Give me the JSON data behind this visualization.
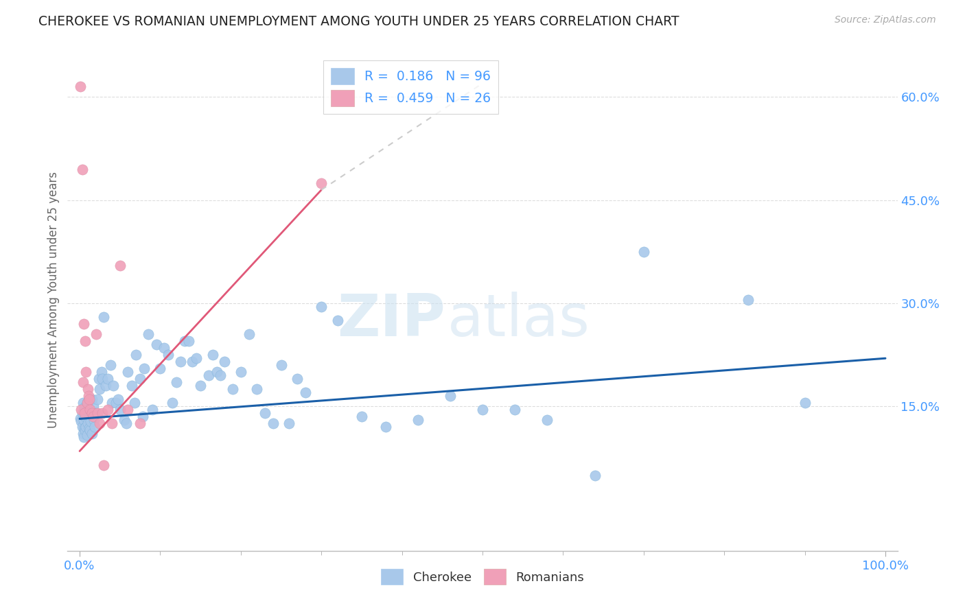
{
  "title": "CHEROKEE VS ROMANIAN UNEMPLOYMENT AMONG YOUTH UNDER 25 YEARS CORRELATION CHART",
  "source": "Source: ZipAtlas.com",
  "ylabel": "Unemployment Among Youth under 25 years",
  "cherokee_R": "0.186",
  "cherokee_N": "96",
  "romanian_R": "0.459",
  "romanian_N": "26",
  "cherokee_color": "#a8c8ea",
  "romanian_color": "#f0a0b8",
  "cherokee_line_color": "#1a5fa8",
  "romanian_line_color": "#e05878",
  "axis_label_color": "#4499ff",
  "text_color": "#333333",
  "grid_color": "#dddddd",
  "ytick_vals": [
    0.15,
    0.3,
    0.45,
    0.6
  ],
  "ytick_labels": [
    "15.0%",
    "30.0%",
    "45.0%",
    "60.0%"
  ],
  "xlim": [
    -0.015,
    1.015
  ],
  "ylim": [
    -0.06,
    0.67
  ],
  "cherokee_x": [
    0.001,
    0.002,
    0.003,
    0.003,
    0.004,
    0.004,
    0.005,
    0.005,
    0.006,
    0.006,
    0.007,
    0.007,
    0.008,
    0.008,
    0.009,
    0.009,
    0.01,
    0.01,
    0.011,
    0.012,
    0.012,
    0.013,
    0.013,
    0.014,
    0.015,
    0.015,
    0.016,
    0.017,
    0.018,
    0.019,
    0.02,
    0.022,
    0.024,
    0.025,
    0.027,
    0.028,
    0.03,
    0.032,
    0.035,
    0.038,
    0.04,
    0.042,
    0.045,
    0.048,
    0.05,
    0.055,
    0.058,
    0.06,
    0.065,
    0.068,
    0.07,
    0.075,
    0.078,
    0.08,
    0.085,
    0.09,
    0.095,
    0.1,
    0.105,
    0.11,
    0.115,
    0.12,
    0.125,
    0.13,
    0.135,
    0.14,
    0.145,
    0.15,
    0.16,
    0.165,
    0.17,
    0.175,
    0.18,
    0.19,
    0.2,
    0.21,
    0.22,
    0.23,
    0.24,
    0.25,
    0.26,
    0.27,
    0.28,
    0.3,
    0.32,
    0.35,
    0.38,
    0.42,
    0.46,
    0.5,
    0.54,
    0.58,
    0.64,
    0.7,
    0.83,
    0.9
  ],
  "cherokee_y": [
    0.132,
    0.128,
    0.14,
    0.12,
    0.155,
    0.11,
    0.13,
    0.105,
    0.148,
    0.118,
    0.135,
    0.115,
    0.14,
    0.12,
    0.155,
    0.108,
    0.145,
    0.125,
    0.138,
    0.118,
    0.142,
    0.115,
    0.145,
    0.128,
    0.16,
    0.11,
    0.14,
    0.15,
    0.13,
    0.12,
    0.14,
    0.16,
    0.19,
    0.175,
    0.2,
    0.19,
    0.28,
    0.18,
    0.19,
    0.21,
    0.155,
    0.18,
    0.155,
    0.16,
    0.145,
    0.13,
    0.125,
    0.2,
    0.18,
    0.155,
    0.225,
    0.19,
    0.135,
    0.205,
    0.255,
    0.145,
    0.24,
    0.205,
    0.235,
    0.225,
    0.155,
    0.185,
    0.215,
    0.245,
    0.245,
    0.215,
    0.22,
    0.18,
    0.195,
    0.225,
    0.2,
    0.195,
    0.215,
    0.175,
    0.2,
    0.255,
    0.175,
    0.14,
    0.125,
    0.21,
    0.125,
    0.19,
    0.17,
    0.295,
    0.275,
    0.135,
    0.12,
    0.13,
    0.165,
    0.145,
    0.145,
    0.13,
    0.05,
    0.375,
    0.305,
    0.155
  ],
  "romanian_x": [
    0.001,
    0.002,
    0.003,
    0.004,
    0.005,
    0.006,
    0.007,
    0.008,
    0.009,
    0.01,
    0.011,
    0.012,
    0.013,
    0.015,
    0.017,
    0.02,
    0.022,
    0.025,
    0.028,
    0.03,
    0.035,
    0.04,
    0.05,
    0.06,
    0.075,
    0.3
  ],
  "romanian_y": [
    0.615,
    0.145,
    0.495,
    0.185,
    0.27,
    0.14,
    0.245,
    0.2,
    0.155,
    0.175,
    0.165,
    0.16,
    0.145,
    0.14,
    0.135,
    0.255,
    0.14,
    0.125,
    0.14,
    0.065,
    0.145,
    0.125,
    0.355,
    0.145,
    0.125,
    0.475
  ],
  "cherokee_trend": [
    0.0,
    1.0,
    0.132,
    0.22
  ],
  "romanian_trend_solid": [
    0.0,
    0.3,
    0.085,
    0.465
  ],
  "romanian_trend_dashed": [
    0.3,
    0.5,
    0.465,
    0.62
  ]
}
